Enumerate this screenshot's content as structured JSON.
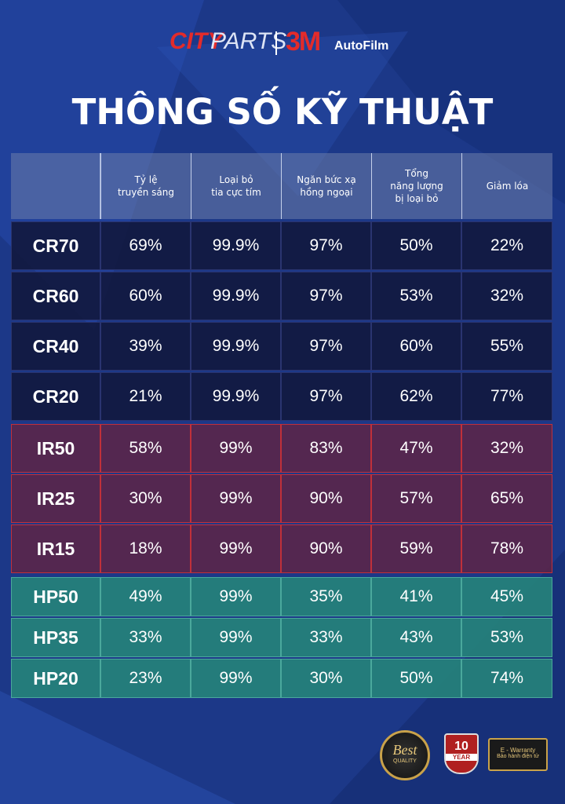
{
  "brand": {
    "city": "CITY",
    "parts": "PARTS",
    "m3": "3M",
    "autofilm": "AutoFilm"
  },
  "title": "THÔNG SỐ KỸ THUẬT",
  "table": {
    "headers": [
      [
        "Tỷ lệ",
        "truyền sáng"
      ],
      [
        "Loại bỏ",
        "tia cực tím"
      ],
      [
        "Ngăn bức xạ",
        "hồng ngoại"
      ],
      [
        "Tổng",
        "năng lượng",
        "bị loại bỏ"
      ],
      [
        "Giảm lóa"
      ]
    ],
    "groups": [
      {
        "rows": [
          [
            "CR70",
            "69%",
            "99.9%",
            "97%",
            "50%",
            "22%"
          ],
          [
            "CR60",
            "60%",
            "99.9%",
            "97%",
            "53%",
            "32%"
          ],
          [
            "CR40",
            "39%",
            "99.9%",
            "97%",
            "60%",
            "55%"
          ],
          [
            "CR20",
            "21%",
            "99.9%",
            "97%",
            "62%",
            "77%"
          ]
        ]
      },
      {
        "rows": [
          [
            "IR50",
            "58%",
            "99%",
            "83%",
            "47%",
            "32%"
          ],
          [
            "IR25",
            "30%",
            "99%",
            "90%",
            "57%",
            "65%"
          ],
          [
            "IR15",
            "18%",
            "99%",
            "90%",
            "59%",
            "78%"
          ]
        ]
      },
      {
        "rows": [
          [
            "HP50",
            "49%",
            "99%",
            "35%",
            "41%",
            "45%"
          ],
          [
            "HP35",
            "33%",
            "99%",
            "33%",
            "43%",
            "53%"
          ],
          [
            "HP20",
            "23%",
            "99%",
            "30%",
            "50%",
            "74%"
          ]
        ]
      }
    ]
  },
  "badges": {
    "best": "Best",
    "quality": "QUALITY",
    "years": "10",
    "year": "YEAR",
    "warranty": "E - Warranty",
    "warranty_sub": "Bảo hành điện tử"
  }
}
